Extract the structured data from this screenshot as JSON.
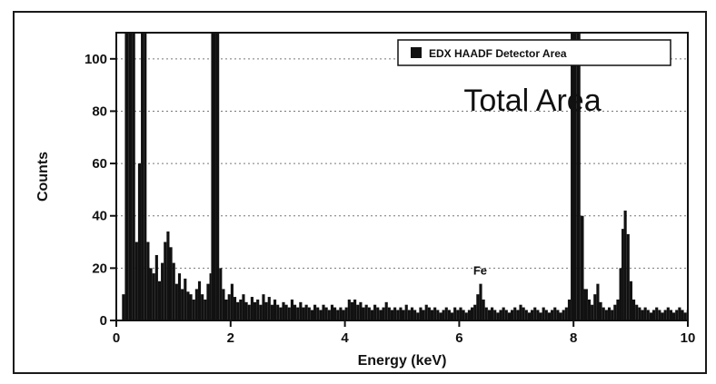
{
  "chart_data": {
    "type": "bar",
    "title": "",
    "xlabel": "Energy (keV)",
    "ylabel": "Counts",
    "xlim": [
      0,
      10
    ],
    "ylim": [
      0,
      110
    ],
    "x_ticks": [
      0,
      2,
      4,
      6,
      8,
      10
    ],
    "y_ticks": [
      0,
      20,
      40,
      60,
      80,
      100
    ],
    "grid": "horizontal-dotted",
    "legend": {
      "position": "top-right",
      "entries": [
        "EDX HAADF Detector Area"
      ]
    },
    "annotation_main": "Total Area",
    "peak_labels": [
      {
        "text": "Fe",
        "x": 6.35,
        "y": 14
      }
    ],
    "series": [
      {
        "name": "EDX HAADF Detector Area",
        "color": "#111111",
        "points": [
          [
            0.05,
            0
          ],
          [
            0.1,
            10
          ],
          [
            0.15,
            110
          ],
          [
            0.22,
            110
          ],
          [
            0.28,
            110
          ],
          [
            0.33,
            30
          ],
          [
            0.38,
            60
          ],
          [
            0.43,
            110
          ],
          [
            0.48,
            110
          ],
          [
            0.53,
            30
          ],
          [
            0.58,
            20
          ],
          [
            0.63,
            18
          ],
          [
            0.68,
            25
          ],
          [
            0.73,
            15
          ],
          [
            0.78,
            22
          ],
          [
            0.83,
            30
          ],
          [
            0.88,
            34
          ],
          [
            0.93,
            28
          ],
          [
            0.98,
            22
          ],
          [
            1.03,
            14
          ],
          [
            1.08,
            18
          ],
          [
            1.13,
            12
          ],
          [
            1.18,
            16
          ],
          [
            1.23,
            11
          ],
          [
            1.28,
            10
          ],
          [
            1.33,
            8
          ],
          [
            1.38,
            12
          ],
          [
            1.43,
            15
          ],
          [
            1.48,
            10
          ],
          [
            1.53,
            8
          ],
          [
            1.58,
            14
          ],
          [
            1.63,
            18
          ],
          [
            1.66,
            110
          ],
          [
            1.74,
            110
          ],
          [
            1.8,
            20
          ],
          [
            1.85,
            12
          ],
          [
            1.9,
            8
          ],
          [
            1.95,
            10
          ],
          [
            2.0,
            14
          ],
          [
            2.05,
            9
          ],
          [
            2.1,
            7
          ],
          [
            2.15,
            8
          ],
          [
            2.2,
            10
          ],
          [
            2.25,
            7
          ],
          [
            2.3,
            6
          ],
          [
            2.35,
            9
          ],
          [
            2.4,
            7
          ],
          [
            2.45,
            8
          ],
          [
            2.5,
            6
          ],
          [
            2.55,
            10
          ],
          [
            2.6,
            7
          ],
          [
            2.65,
            9
          ],
          [
            2.7,
            6
          ],
          [
            2.75,
            8
          ],
          [
            2.8,
            6
          ],
          [
            2.85,
            5
          ],
          [
            2.9,
            7
          ],
          [
            2.95,
            6
          ],
          [
            3.0,
            5
          ],
          [
            3.05,
            8
          ],
          [
            3.1,
            6
          ],
          [
            3.15,
            5
          ],
          [
            3.2,
            7
          ],
          [
            3.25,
            5
          ],
          [
            3.3,
            6
          ],
          [
            3.35,
            5
          ],
          [
            3.4,
            4
          ],
          [
            3.45,
            6
          ],
          [
            3.5,
            5
          ],
          [
            3.55,
            4
          ],
          [
            3.6,
            6
          ],
          [
            3.65,
            5
          ],
          [
            3.7,
            4
          ],
          [
            3.75,
            6
          ],
          [
            3.8,
            5
          ],
          [
            3.85,
            4
          ],
          [
            3.9,
            5
          ],
          [
            3.95,
            4
          ],
          [
            4.0,
            5
          ],
          [
            4.05,
            8
          ],
          [
            4.1,
            7
          ],
          [
            4.15,
            8
          ],
          [
            4.2,
            6
          ],
          [
            4.25,
            7
          ],
          [
            4.3,
            5
          ],
          [
            4.35,
            6
          ],
          [
            4.4,
            5
          ],
          [
            4.45,
            4
          ],
          [
            4.5,
            6
          ],
          [
            4.55,
            5
          ],
          [
            4.6,
            4
          ],
          [
            4.65,
            5
          ],
          [
            4.7,
            7
          ],
          [
            4.75,
            5
          ],
          [
            4.8,
            4
          ],
          [
            4.85,
            5
          ],
          [
            4.9,
            4
          ],
          [
            4.95,
            5
          ],
          [
            5.0,
            4
          ],
          [
            5.05,
            6
          ],
          [
            5.1,
            4
          ],
          [
            5.15,
            5
          ],
          [
            5.2,
            4
          ],
          [
            5.25,
            3
          ],
          [
            5.3,
            5
          ],
          [
            5.35,
            4
          ],
          [
            5.4,
            6
          ],
          [
            5.45,
            5
          ],
          [
            5.5,
            4
          ],
          [
            5.55,
            5
          ],
          [
            5.6,
            4
          ],
          [
            5.65,
            3
          ],
          [
            5.7,
            4
          ],
          [
            5.75,
            5
          ],
          [
            5.8,
            4
          ],
          [
            5.85,
            3
          ],
          [
            5.9,
            5
          ],
          [
            5.95,
            4
          ],
          [
            6.0,
            5
          ],
          [
            6.05,
            4
          ],
          [
            6.1,
            3
          ],
          [
            6.15,
            4
          ],
          [
            6.2,
            5
          ],
          [
            6.25,
            6
          ],
          [
            6.3,
            10
          ],
          [
            6.35,
            14
          ],
          [
            6.4,
            8
          ],
          [
            6.45,
            5
          ],
          [
            6.5,
            4
          ],
          [
            6.55,
            5
          ],
          [
            6.6,
            4
          ],
          [
            6.65,
            3
          ],
          [
            6.7,
            4
          ],
          [
            6.75,
            5
          ],
          [
            6.8,
            4
          ],
          [
            6.85,
            3
          ],
          [
            6.9,
            4
          ],
          [
            6.95,
            5
          ],
          [
            7.0,
            4
          ],
          [
            7.05,
            6
          ],
          [
            7.1,
            5
          ],
          [
            7.15,
            4
          ],
          [
            7.2,
            3
          ],
          [
            7.25,
            4
          ],
          [
            7.3,
            5
          ],
          [
            7.35,
            4
          ],
          [
            7.4,
            3
          ],
          [
            7.45,
            5
          ],
          [
            7.5,
            4
          ],
          [
            7.55,
            3
          ],
          [
            7.6,
            4
          ],
          [
            7.65,
            5
          ],
          [
            7.7,
            4
          ],
          [
            7.75,
            3
          ],
          [
            7.8,
            4
          ],
          [
            7.85,
            5
          ],
          [
            7.9,
            8
          ],
          [
            7.95,
            110
          ],
          [
            8.05,
            110
          ],
          [
            8.12,
            40
          ],
          [
            8.18,
            12
          ],
          [
            8.25,
            8
          ],
          [
            8.3,
            6
          ],
          [
            8.35,
            10
          ],
          [
            8.4,
            14
          ],
          [
            8.45,
            7
          ],
          [
            8.5,
            5
          ],
          [
            8.55,
            4
          ],
          [
            8.6,
            5
          ],
          [
            8.65,
            4
          ],
          [
            8.7,
            6
          ],
          [
            8.75,
            8
          ],
          [
            8.8,
            20
          ],
          [
            8.84,
            35
          ],
          [
            8.88,
            42
          ],
          [
            8.93,
            33
          ],
          [
            8.98,
            15
          ],
          [
            9.03,
            8
          ],
          [
            9.08,
            6
          ],
          [
            9.13,
            5
          ],
          [
            9.18,
            4
          ],
          [
            9.23,
            5
          ],
          [
            9.28,
            4
          ],
          [
            9.33,
            3
          ],
          [
            9.38,
            4
          ],
          [
            9.43,
            5
          ],
          [
            9.48,
            4
          ],
          [
            9.53,
            3
          ],
          [
            9.58,
            4
          ],
          [
            9.63,
            5
          ],
          [
            9.68,
            4
          ],
          [
            9.73,
            3
          ],
          [
            9.78,
            4
          ],
          [
            9.83,
            5
          ],
          [
            9.88,
            4
          ],
          [
            9.93,
            3
          ],
          [
            9.98,
            4
          ]
        ]
      }
    ]
  }
}
